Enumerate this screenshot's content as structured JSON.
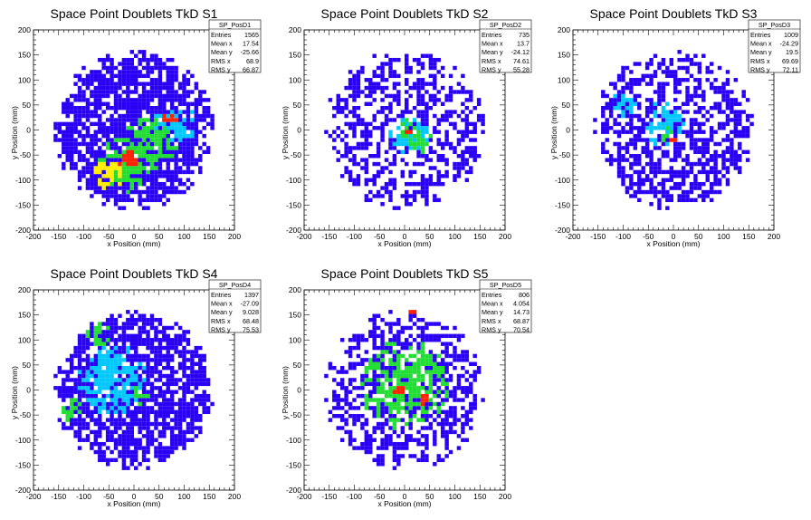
{
  "colors": {
    "palette": [
      "#2a00f5",
      "#00c8ff",
      "#22dd33",
      "#ffee00",
      "#ff2200"
    ],
    "frame": "#000000",
    "background": "#ffffff"
  },
  "chart_data": [
    {
      "type": "heatmap",
      "title": "Space Point Doublets TkD S1",
      "xlabel": "x Position (mm)",
      "ylabel": "y Position (mm)",
      "xlim": [
        -200,
        200
      ],
      "ylim": [
        -200,
        200
      ],
      "xticks": [
        -200,
        -150,
        -100,
        -50,
        0,
        50,
        100,
        150,
        200
      ],
      "yticks": [
        -200,
        -150,
        -100,
        -50,
        0,
        50,
        100,
        150,
        200
      ],
      "legend_position": "top-right",
      "stats": {
        "name": "SP_PosD1",
        "rows": [
          {
            "label": "Entries",
            "value": "1565"
          },
          {
            "label": "Mean x",
            "value": "17.54"
          },
          {
            "label": "Mean y",
            "value": "-25.66"
          },
          {
            "label": "RMS x",
            "value": "68.9"
          },
          {
            "label": "RMS y",
            "value": "66.87"
          }
        ]
      },
      "entries": 1565,
      "mean_x": 17.54,
      "mean_y": -25.66,
      "rms_x": 68.9,
      "rms_y": 66.87,
      "disk_radius": 160,
      "hotspots": [
        {
          "x": -20,
          "y": -70,
          "r": 55,
          "level": 2
        },
        {
          "x": 30,
          "y": -30,
          "r": 55,
          "level": 2
        },
        {
          "x": 80,
          "y": 10,
          "r": 45,
          "level": 1
        },
        {
          "x": -50,
          "y": -90,
          "r": 30,
          "level": 3
        },
        {
          "x": -10,
          "y": -60,
          "r": 22,
          "level": 4
        },
        {
          "x": 70,
          "y": 20,
          "r": 18,
          "level": 4
        }
      ]
    },
    {
      "type": "heatmap",
      "title": "Space Point Doublets TkD S2",
      "xlabel": "x Position (mm)",
      "ylabel": "y Position (mm)",
      "xlim": [
        -200,
        200
      ],
      "ylim": [
        -200,
        200
      ],
      "xticks": [
        -200,
        -150,
        -100,
        -50,
        0,
        50,
        100,
        150,
        200
      ],
      "yticks": [
        -200,
        -150,
        -100,
        -50,
        0,
        50,
        100,
        150,
        200
      ],
      "legend_position": "top-right",
      "stats": {
        "name": "SP_PosD2",
        "rows": [
          {
            "label": "Entries",
            "value": "735"
          },
          {
            "label": "Mean x",
            "value": "13.7"
          },
          {
            "label": "Mean y",
            "value": "-24.12"
          },
          {
            "label": "RMS x",
            "value": "74.61"
          },
          {
            "label": "RMS y",
            "value": "55.28"
          }
        ]
      },
      "entries": 735,
      "mean_x": 13.7,
      "mean_y": -24.12,
      "rms_x": 74.61,
      "rms_y": 55.28,
      "disk_radius": 160,
      "hotspots": [
        {
          "x": 10,
          "y": -10,
          "r": 40,
          "level": 1
        },
        {
          "x": 0,
          "y": 0,
          "r": 22,
          "level": 2
        },
        {
          "x": 30,
          "y": -20,
          "r": 25,
          "level": 2
        },
        {
          "x": 10,
          "y": -5,
          "r": 10,
          "level": 4
        }
      ]
    },
    {
      "type": "heatmap",
      "title": "Space Point Doublets TkD S3",
      "xlabel": "x Position (mm)",
      "ylabel": "y Position (mm)",
      "xlim": [
        -200,
        200
      ],
      "ylim": [
        -200,
        200
      ],
      "xticks": [
        -200,
        -150,
        -100,
        -50,
        0,
        50,
        100,
        150,
        200
      ],
      "yticks": [
        -200,
        -150,
        -100,
        -50,
        0,
        50,
        100,
        150,
        200
      ],
      "legend_position": "top-right",
      "stats": {
        "name": "SP_PosD3",
        "rows": [
          {
            "label": "Entries",
            "value": "1009"
          },
          {
            "label": "Mean x",
            "value": "-24.29"
          },
          {
            "label": "Mean y",
            "value": "19.5"
          },
          {
            "label": "RMS x",
            "value": "69.69"
          },
          {
            "label": "RMS y",
            "value": "72.11"
          }
        ]
      },
      "entries": 1009,
      "mean_x": -24.29,
      "mean_y": 19.5,
      "rms_x": 69.69,
      "rms_y": 72.11,
      "disk_radius": 160,
      "hotspots": [
        {
          "x": -20,
          "y": 10,
          "r": 45,
          "level": 1
        },
        {
          "x": -10,
          "y": -10,
          "r": 15,
          "level": 2
        },
        {
          "x": -100,
          "y": 50,
          "r": 25,
          "level": 1
        },
        {
          "x": 0,
          "y": -20,
          "r": 8,
          "level": 4
        }
      ]
    },
    {
      "type": "heatmap",
      "title": "Space Point Doublets TkD S4",
      "xlabel": "x Position (mm)",
      "ylabel": "y Position (mm)",
      "xlim": [
        -200,
        200
      ],
      "ylim": [
        -200,
        200
      ],
      "xticks": [
        -200,
        -150,
        -100,
        -50,
        0,
        50,
        100,
        150,
        200
      ],
      "yticks": [
        -200,
        -150,
        -100,
        -50,
        0,
        50,
        100,
        150,
        200
      ],
      "legend_position": "top-right",
      "stats": {
        "name": "SP_PosD4",
        "rows": [
          {
            "label": "Entries",
            "value": "1397"
          },
          {
            "label": "Mean x",
            "value": "-27.09"
          },
          {
            "label": "Mean y",
            "value": "9.028"
          },
          {
            "label": "RMS x",
            "value": "68.48"
          },
          {
            "label": "RMS y",
            "value": "75.53"
          }
        ]
      },
      "entries": 1397,
      "mean_x": -27.09,
      "mean_y": 9.028,
      "rms_x": 68.48,
      "rms_y": 75.53,
      "disk_radius": 160,
      "hotspots": [
        {
          "x": -40,
          "y": 20,
          "r": 70,
          "level": 1
        },
        {
          "x": 10,
          "y": -10,
          "r": 20,
          "level": 2
        },
        {
          "x": -70,
          "y": 110,
          "r": 25,
          "level": 2
        },
        {
          "x": -120,
          "y": -40,
          "r": 25,
          "level": 2
        }
      ]
    },
    {
      "type": "heatmap",
      "title": "Space Point Doublets TkD S5",
      "xlabel": "x Position (mm)",
      "ylabel": "y Position (mm)",
      "xlim": [
        -200,
        200
      ],
      "ylim": [
        -200,
        200
      ],
      "xticks": [
        -200,
        -150,
        -100,
        -50,
        0,
        50,
        100,
        150,
        200
      ],
      "yticks": [
        -200,
        -150,
        -100,
        -50,
        0,
        50,
        100,
        150,
        200
      ],
      "legend_position": "top-right",
      "stats": {
        "name": "SP_PosD5",
        "rows": [
          {
            "label": "Entries",
            "value": "806"
          },
          {
            "label": "Mean x",
            "value": "4.054"
          },
          {
            "label": "Mean y",
            "value": "14.73"
          },
          {
            "label": "RMS x",
            "value": "68.87"
          },
          {
            "label": "RMS y",
            "value": "70.54"
          }
        ]
      },
      "entries": 806,
      "mean_x": 4.054,
      "mean_y": 14.73,
      "rms_x": 68.87,
      "rms_y": 70.54,
      "disk_radius": 160,
      "hotspots": [
        {
          "x": 0,
          "y": 10,
          "r": 90,
          "level": 2
        },
        {
          "x": 20,
          "y": 160,
          "r": 10,
          "level": 4
        },
        {
          "x": -10,
          "y": 0,
          "r": 12,
          "level": 4
        },
        {
          "x": 40,
          "y": -20,
          "r": 10,
          "level": 4
        }
      ]
    }
  ]
}
